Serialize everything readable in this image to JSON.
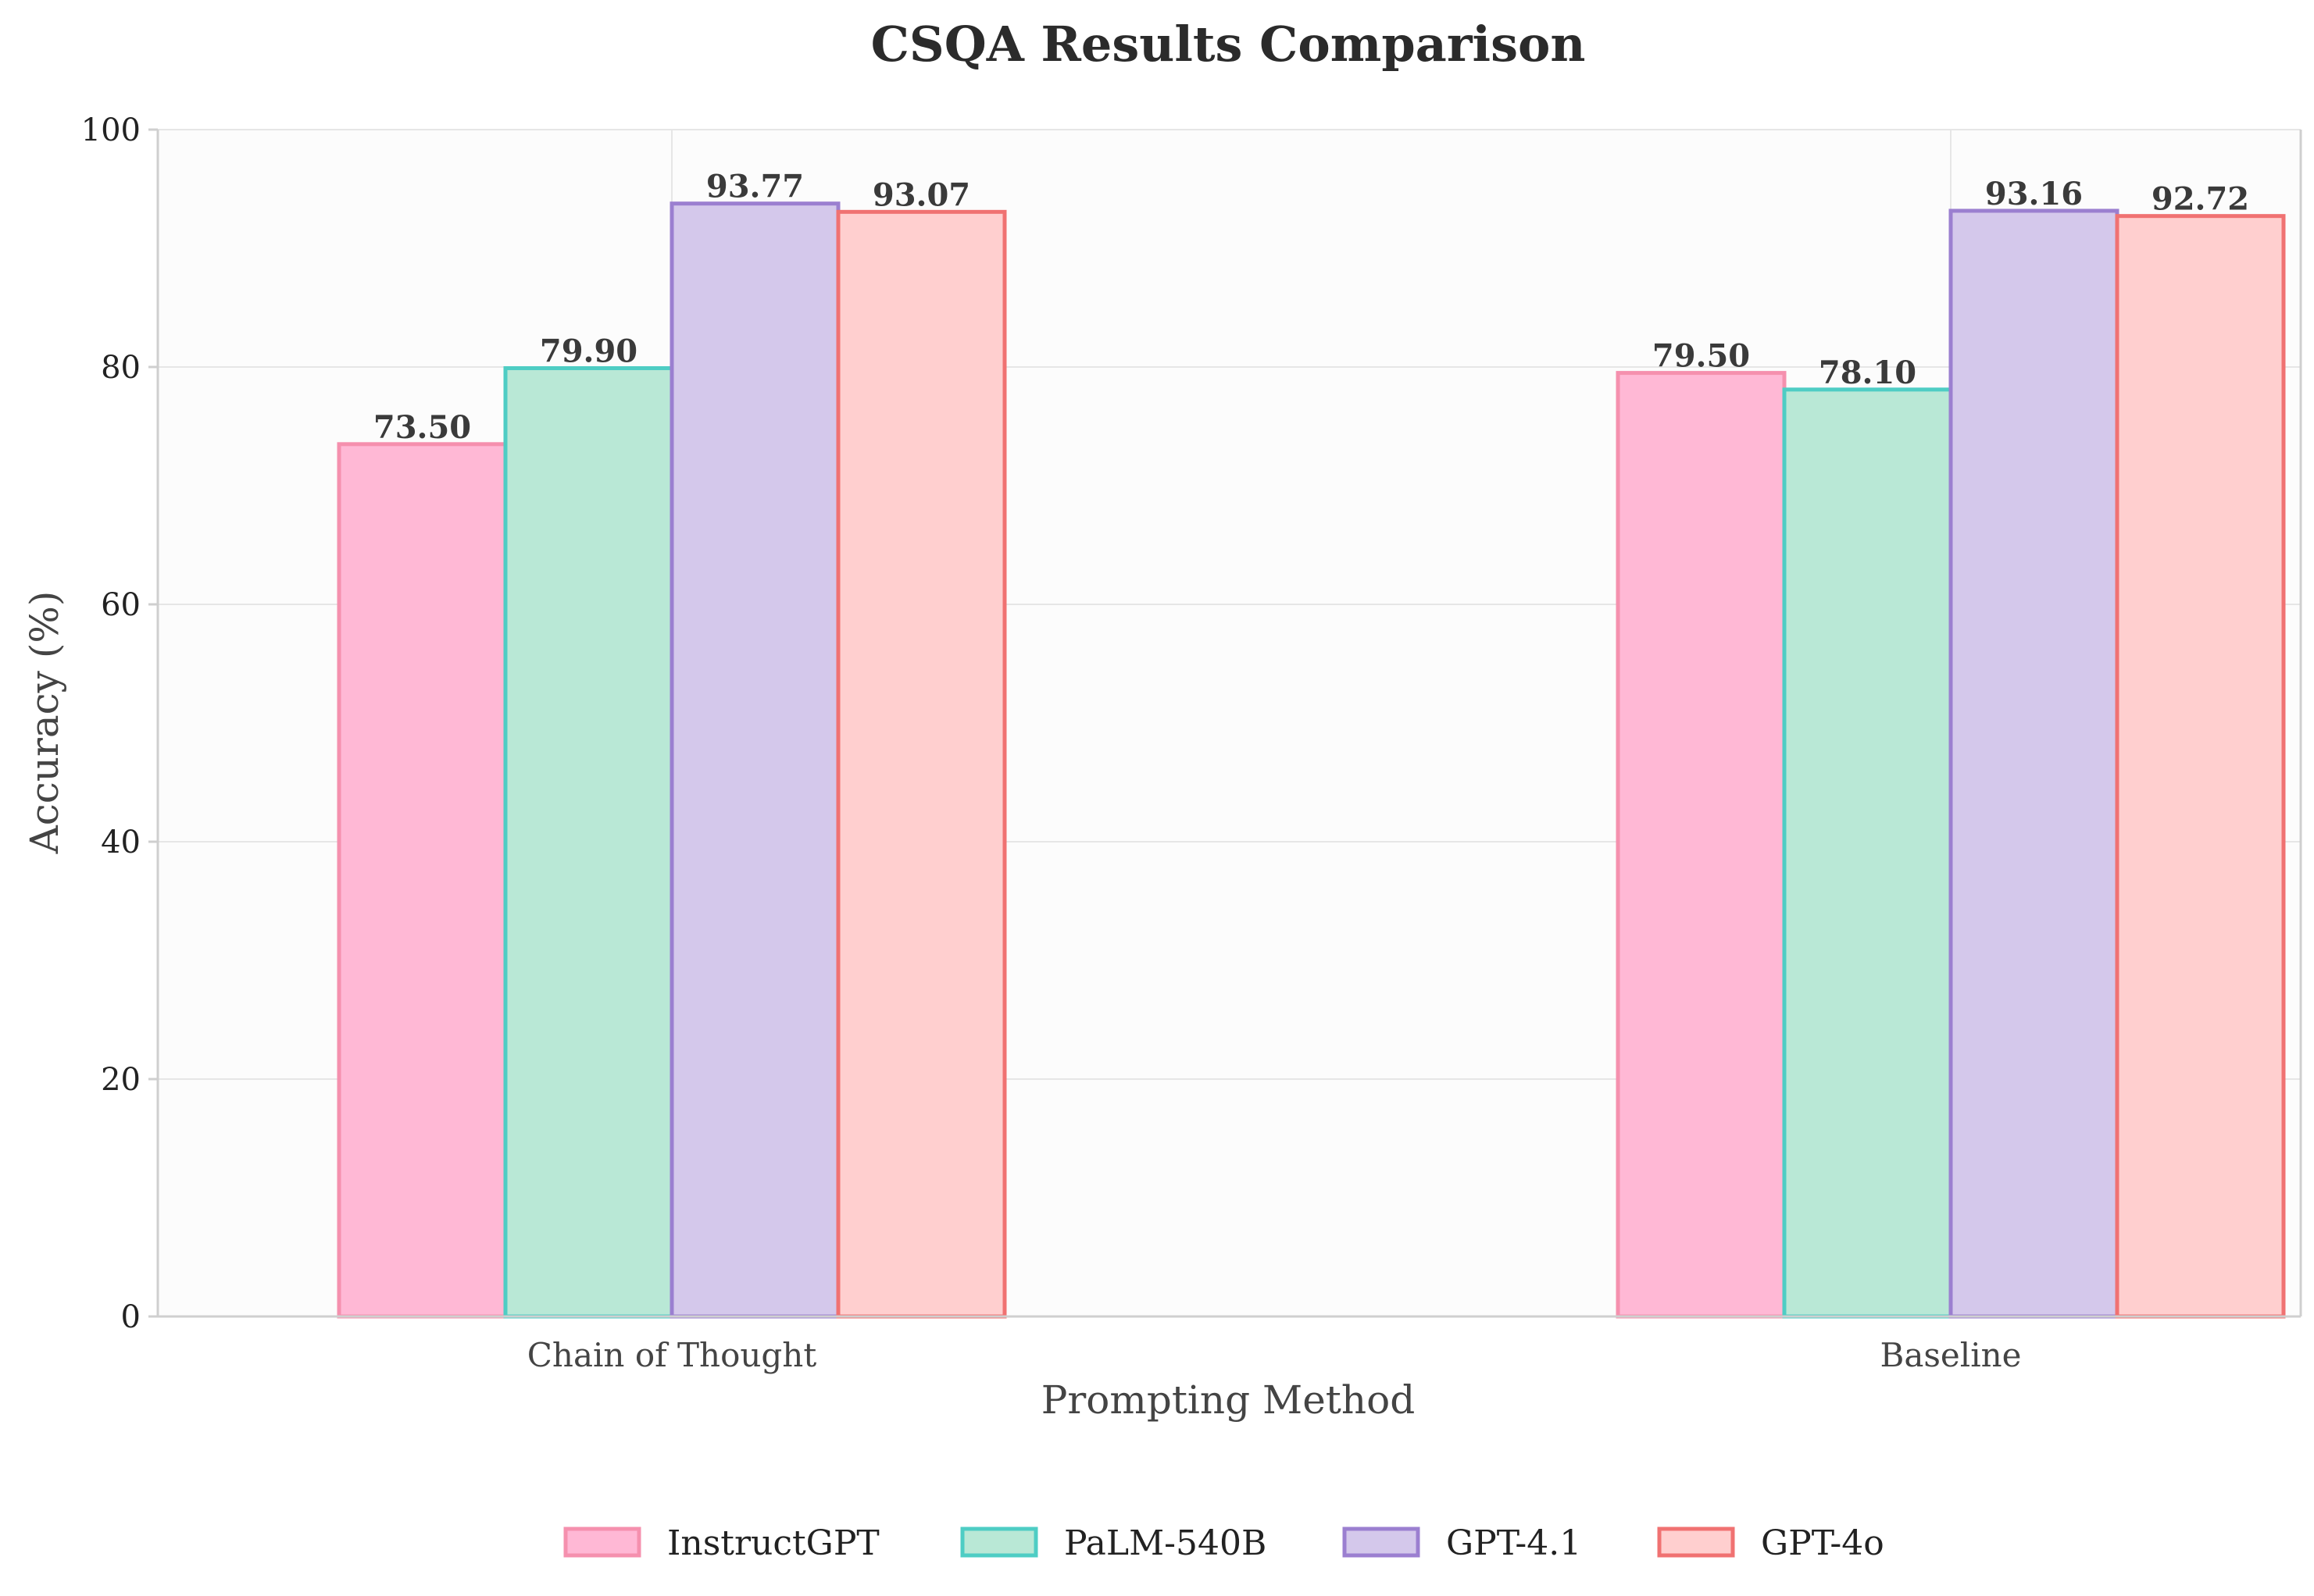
{
  "chart_data": {
    "type": "bar",
    "title": "CSQA Results Comparison",
    "xlabel": "Prompting Method",
    "ylabel": "Accuracy (%)",
    "ylim": [
      0,
      100
    ],
    "yticks": [
      "0",
      "20",
      "40",
      "60",
      "80",
      "100"
    ],
    "categories": [
      "Chain of Thought",
      "Baseline"
    ],
    "series": [
      {
        "name": "InstructGPT",
        "values": [
          73.5,
          79.5
        ],
        "labels": [
          "73.50",
          "79.50"
        ],
        "fill": "#ffb8d5",
        "stroke": "#f590ae"
      },
      {
        "name": "PaLM-540B",
        "values": [
          79.9,
          78.1
        ],
        "labels": [
          "79.90",
          "78.10"
        ],
        "fill": "#b9e8d6",
        "stroke": "#4ecdc4"
      },
      {
        "name": "GPT-4.1",
        "values": [
          93.77,
          93.16
        ],
        "labels": [
          "93.77",
          "93.16"
        ],
        "fill": "#d4c8eb",
        "stroke": "#9b7fd0"
      },
      {
        "name": "GPT-4o",
        "values": [
          93.07,
          92.72
        ],
        "labels": [
          "93.07",
          "92.72"
        ],
        "fill": "#ffcfcf",
        "stroke": "#f07272"
      }
    ],
    "grid": true,
    "legend_position": "bottom-center"
  }
}
